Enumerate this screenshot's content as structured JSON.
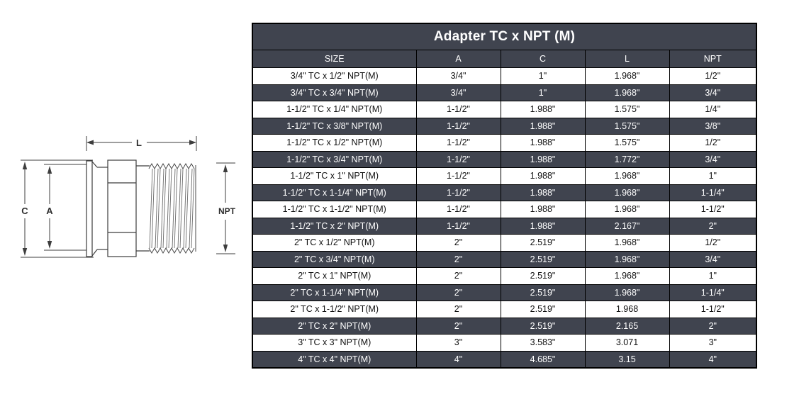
{
  "table": {
    "title": "Adapter TC x NPT (M)",
    "columns": [
      "SIZE",
      "A",
      "C",
      "L",
      "NPT"
    ],
    "rows": [
      [
        "3/4\" TC x 1/2\" NPT(M)",
        "3/4\"",
        "1\"",
        "1.968\"",
        "1/2\""
      ],
      [
        "3/4\" TC x 3/4\" NPT(M)",
        "3/4\"",
        "1\"",
        "1.968\"",
        "3/4\""
      ],
      [
        "1-1/2\" TC x 1/4\" NPT(M)",
        "1-1/2\"",
        "1.988\"",
        "1.575\"",
        "1/4\""
      ],
      [
        "1-1/2\" TC x 3/8\" NPT(M)",
        "1-1/2\"",
        "1.988\"",
        "1.575\"",
        "3/8\""
      ],
      [
        "1-1/2\" TC x 1/2\" NPT(M)",
        "1-1/2\"",
        "1.988\"",
        "1.575\"",
        "1/2\""
      ],
      [
        "1-1/2\" TC x 3/4\" NPT(M)",
        "1-1/2\"",
        "1.988\"",
        "1.772\"",
        "3/4\""
      ],
      [
        "1-1/2\" TC x 1\" NPT(M)",
        "1-1/2\"",
        "1.988\"",
        "1.968\"",
        "1\""
      ],
      [
        "1-1/2\" TC x 1-1/4\" NPT(M)",
        "1-1/2\"",
        "1.988\"",
        "1.968\"",
        "1-1/4\""
      ],
      [
        "1-1/2\" TC x 1-1/2\" NPT(M)",
        "1-1/2\"",
        "1.988\"",
        "1.968\"",
        "1-1/2\""
      ],
      [
        "1-1/2\" TC x 2\" NPT(M)",
        "1-1/2\"",
        "1.988\"",
        "2.167\"",
        "2\""
      ],
      [
        "2\" TC x 1/2\" NPT(M)",
        "2\"",
        "2.519\"",
        "1.968\"",
        "1/2\""
      ],
      [
        "2\" TC x 3/4\" NPT(M)",
        "2\"",
        "2.519\"",
        "1.968\"",
        "3/4\""
      ],
      [
        "2\" TC x 1\" NPT(M)",
        "2\"",
        "2.519\"",
        "1.968\"",
        "1\""
      ],
      [
        "2\" TC x 1-1/4\" NPT(M)",
        "2\"",
        "2.519\"",
        "1.968\"",
        "1-1/4\""
      ],
      [
        "2\" TC x 1-1/2\" NPT(M)",
        "2\"",
        "2.519\"",
        "1.968",
        "1-1/2\""
      ],
      [
        "2\" TC x 2\" NPT(M)",
        "2\"",
        "2.519\"",
        "2.165",
        "2\""
      ],
      [
        "3\" TC x 3\" NPT(M)",
        "3\"",
        "3.583\"",
        "3.071",
        "3\""
      ],
      [
        "4\" TC x 4\" NPT(M)",
        "4\"",
        "4.685\"",
        "3.15",
        "4\""
      ]
    ]
  },
  "diagram": {
    "labels": {
      "length": "L",
      "clamp_od": "C",
      "inner_dia": "A",
      "thread": "NPT"
    }
  },
  "colors": {
    "dark_row_bg": "#40444F",
    "header_bg": "#40444F",
    "border": "#000000",
    "row_bg": "#ffffff"
  }
}
